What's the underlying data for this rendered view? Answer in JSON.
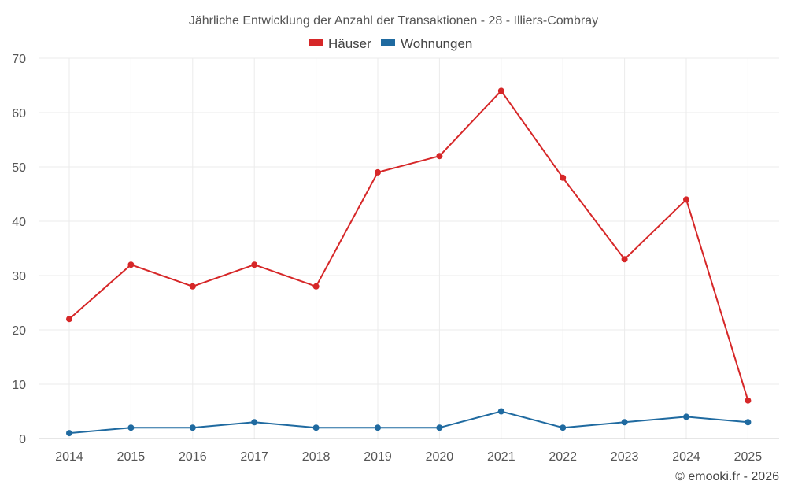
{
  "chart_data": {
    "type": "line",
    "title": "Jährliche Entwicklung der Anzahl der Transaktionen - 28 - Illiers-Combray",
    "x": [
      "2014",
      "2015",
      "2016",
      "2017",
      "2018",
      "2019",
      "2020",
      "2021",
      "2022",
      "2023",
      "2024",
      "2025"
    ],
    "ylim": [
      0,
      70
    ],
    "yticks": [
      "0",
      "10",
      "20",
      "30",
      "40",
      "50",
      "60",
      "70"
    ],
    "grid": true,
    "legend_position": "top-center",
    "series": [
      {
        "name": "Häuser",
        "color": "#d62728",
        "values": [
          22,
          32,
          28,
          32,
          28,
          49,
          52,
          64,
          48,
          33,
          44,
          7
        ]
      },
      {
        "name": "Wohnungen",
        "color": "#1f6aa0",
        "values": [
          1,
          2,
          2,
          3,
          2,
          2,
          2,
          5,
          2,
          3,
          4,
          3
        ]
      }
    ]
  },
  "credit": "© emooki.fr - 2026"
}
